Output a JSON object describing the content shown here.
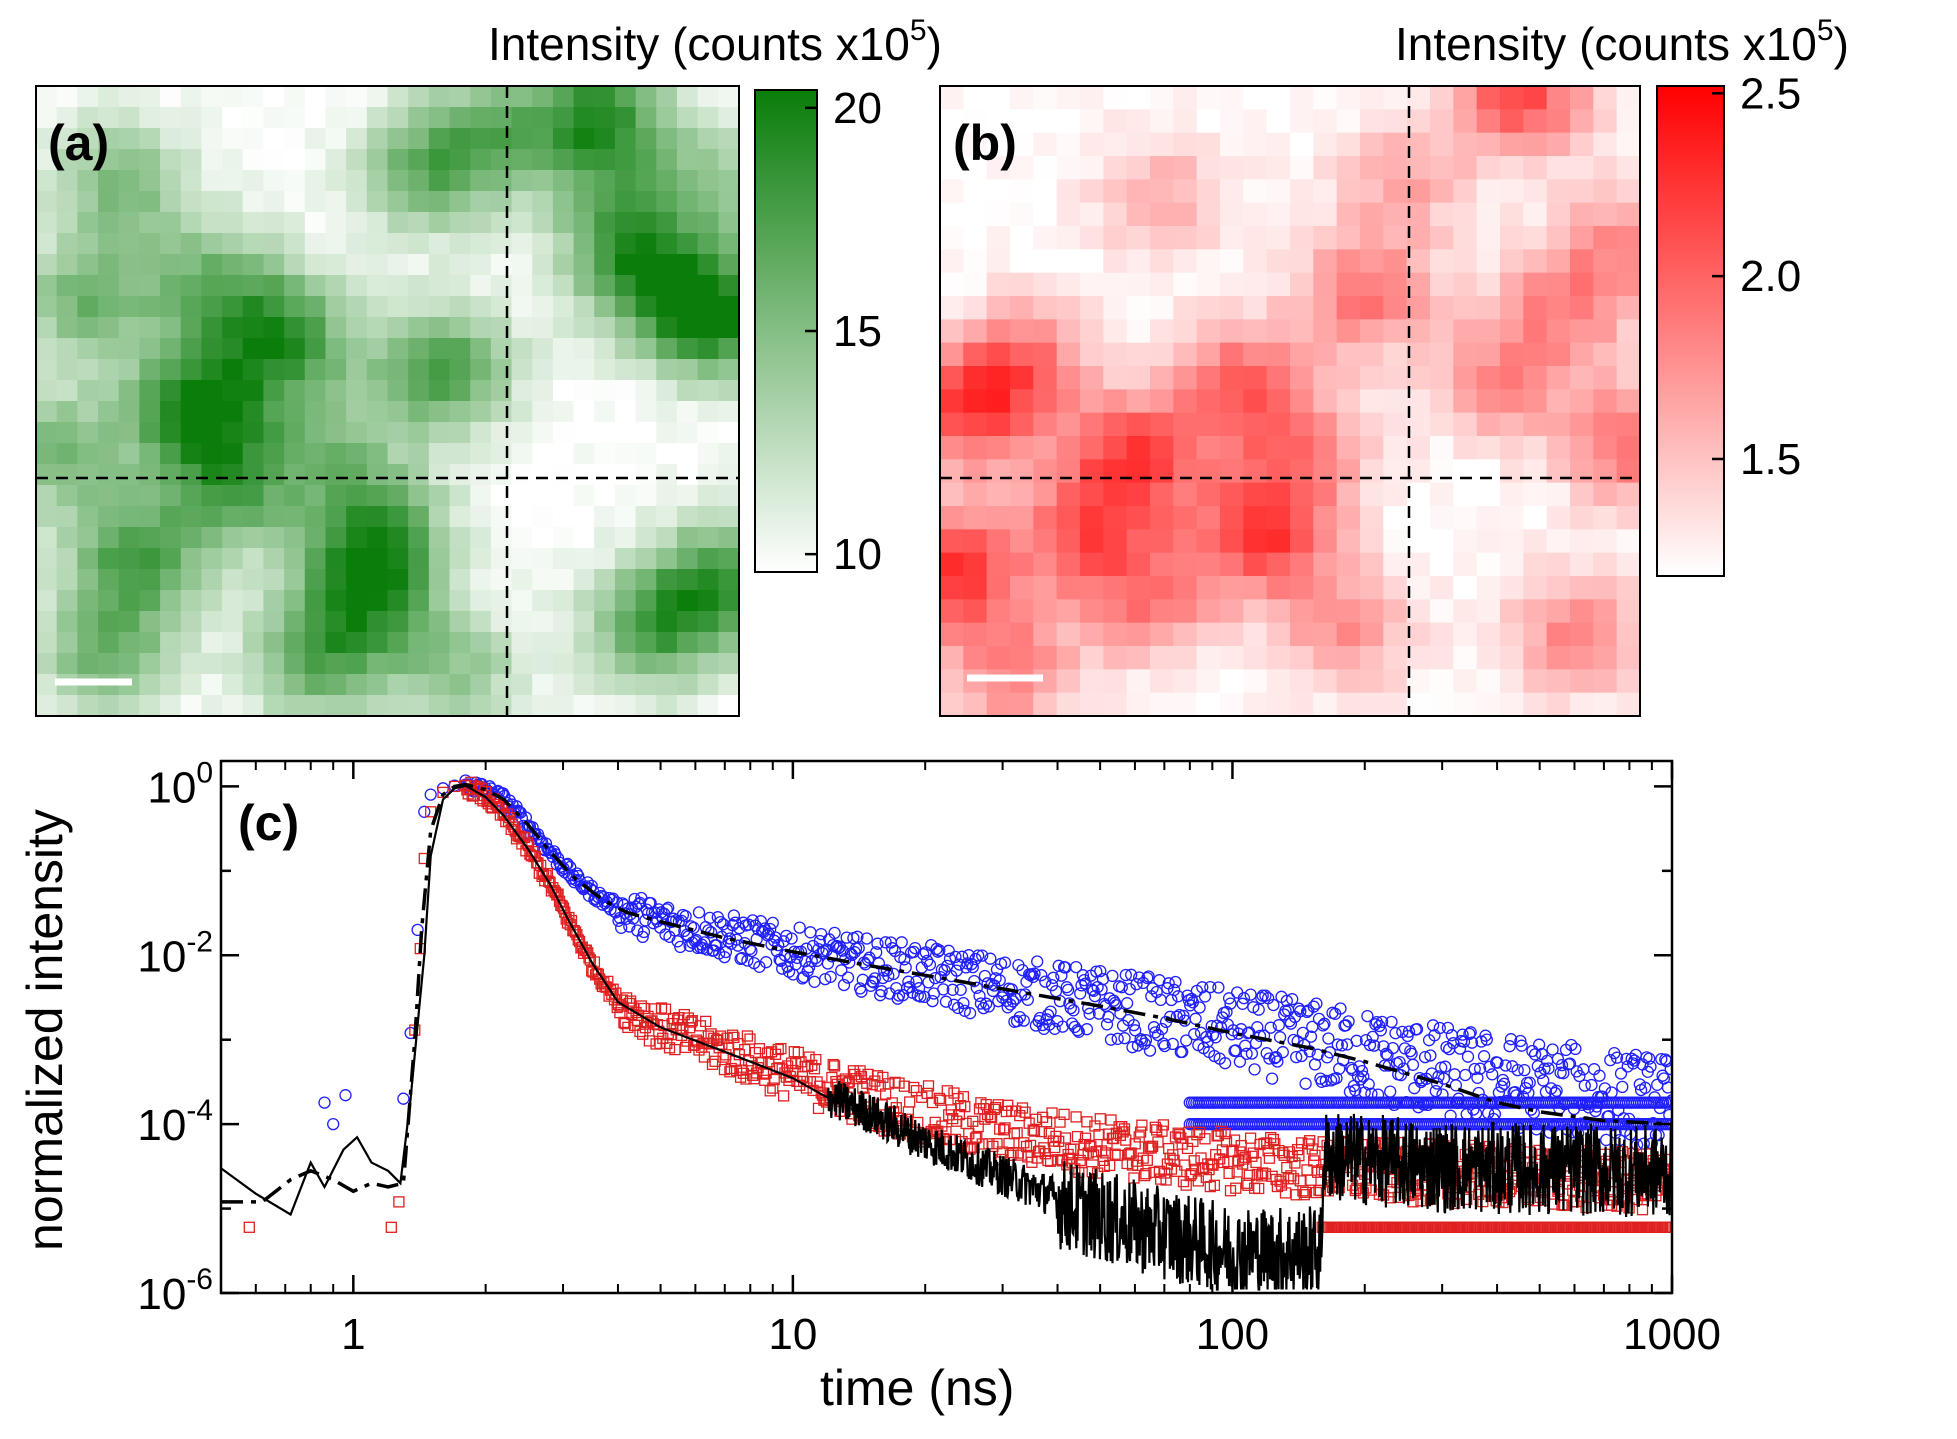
{
  "chart_data": [
    {
      "type": "heatmap",
      "panel_label": "(a)",
      "colorbar": {
        "title_prefix": "Intensity (counts x10",
        "title_exponent": "5",
        "title_suffix": ")",
        "ticks": [
          "20",
          "15",
          "10"
        ],
        "tick_values": [
          20,
          15,
          10
        ],
        "range": [
          9.6,
          20.4
        ],
        "color_low": "#ffffff",
        "color_high": "#0a7d0a"
      },
      "crosshair": {
        "x_fraction": 0.67,
        "y_fraction": 0.62
      },
      "grid_size": [
        34,
        30
      ],
      "hotspots": [
        {
          "x": 0.23,
          "y": 0.51,
          "a": 1.0
        },
        {
          "x": 0.35,
          "y": 0.4,
          "a": 0.85
        },
        {
          "x": 0.25,
          "y": 0.31,
          "a": 0.55
        },
        {
          "x": 0.58,
          "y": 0.45,
          "a": 0.8
        },
        {
          "x": 0.07,
          "y": 0.34,
          "a": 0.6
        },
        {
          "x": 0.8,
          "y": 0.05,
          "a": 0.9
        },
        {
          "x": 0.97,
          "y": 0.37,
          "a": 0.95
        },
        {
          "x": 0.87,
          "y": 0.3,
          "a": 0.8
        },
        {
          "x": 0.14,
          "y": 0.75,
          "a": 0.75
        },
        {
          "x": 0.28,
          "y": 0.64,
          "a": 0.65
        },
        {
          "x": 0.47,
          "y": 0.8,
          "a": 0.8
        },
        {
          "x": 0.49,
          "y": 0.7,
          "a": 0.65
        },
        {
          "x": 0.1,
          "y": 0.9,
          "a": 0.6
        },
        {
          "x": 0.4,
          "y": 0.91,
          "a": 0.65
        },
        {
          "x": 0.88,
          "y": 0.86,
          "a": 0.75
        },
        {
          "x": 0.98,
          "y": 0.78,
          "a": 0.75
        },
        {
          "x": 0.55,
          "y": 0.14,
          "a": 0.55
        },
        {
          "x": 0.64,
          "y": 0.08,
          "a": 0.55
        },
        {
          "x": 0.12,
          "y": 0.15,
          "a": 0.55
        },
        {
          "x": 0.82,
          "y": 0.2,
          "a": 0.45
        },
        {
          "x": 0.6,
          "y": 0.93,
          "a": 0.45
        },
        {
          "x": 0.03,
          "y": 0.58,
          "a": 0.55
        },
        {
          "x": 0.42,
          "y": 0.57,
          "a": 0.4
        },
        {
          "x": 0.97,
          "y": 0.15,
          "a": 0.4
        }
      ]
    },
    {
      "type": "heatmap",
      "panel_label": "(b)",
      "colorbar": {
        "title_prefix": "Intensity (counts x10",
        "title_exponent": "5",
        "title_suffix": ")",
        "ticks": [
          "2.5",
          "2.0",
          "1.5"
        ],
        "tick_values": [
          2.5,
          2.0,
          1.5
        ],
        "range": [
          1.18,
          2.52
        ],
        "color_low": "#ffffff",
        "color_high": "#ff0000"
      },
      "crosshair": {
        "x_fraction": 0.67,
        "y_fraction": 0.62
      },
      "grid_size": [
        30,
        27
      ],
      "hotspots": [
        {
          "x": 0.83,
          "y": 0.01,
          "a": 0.75
        },
        {
          "x": 0.04,
          "y": 0.52,
          "a": 0.7
        },
        {
          "x": 0.02,
          "y": 0.77,
          "a": 0.8
        },
        {
          "x": 0.28,
          "y": 0.59,
          "a": 0.75
        },
        {
          "x": 0.46,
          "y": 0.71,
          "a": 0.8
        },
        {
          "x": 0.21,
          "y": 0.71,
          "a": 0.6
        },
        {
          "x": 0.43,
          "y": 0.47,
          "a": 0.6
        },
        {
          "x": 0.61,
          "y": 0.33,
          "a": 0.55
        },
        {
          "x": 0.99,
          "y": 0.57,
          "a": 0.6
        },
        {
          "x": 0.91,
          "y": 0.87,
          "a": 0.5
        },
        {
          "x": 0.8,
          "y": 0.47,
          "a": 0.45
        },
        {
          "x": 0.89,
          "y": 0.35,
          "a": 0.45
        },
        {
          "x": 0.12,
          "y": 0.44,
          "a": 0.55
        },
        {
          "x": 0.3,
          "y": 0.82,
          "a": 0.5
        },
        {
          "x": 0.58,
          "y": 0.86,
          "a": 0.45
        },
        {
          "x": 0.66,
          "y": 0.15,
          "a": 0.35
        },
        {
          "x": 0.98,
          "y": 0.25,
          "a": 0.4
        },
        {
          "x": 0.1,
          "y": 0.93,
          "a": 0.5
        },
        {
          "x": 0.52,
          "y": 0.58,
          "a": 0.45
        },
        {
          "x": 0.32,
          "y": 0.18,
          "a": 0.35
        }
      ]
    },
    {
      "type": "scatter",
      "panel_label": "(c)",
      "xlabel": "time (ns)",
      "ylabel": "normalized intensity",
      "xscale": "log",
      "yscale": "log",
      "xlim": [
        0.5,
        1000
      ],
      "ylim": [
        1e-06,
        2
      ],
      "xticks": [
        {
          "value": 1,
          "label": "1"
        },
        {
          "value": 10,
          "label": "10"
        },
        {
          "value": 100,
          "label": "100"
        },
        {
          "value": 1000,
          "label": "1000"
        }
      ],
      "yticks": [
        {
          "value": 1,
          "base": "10",
          "exp": "0"
        },
        {
          "value": 0.01,
          "base": "10",
          "exp": "-2"
        },
        {
          "value": 0.0001,
          "base": "10",
          "exp": "-4"
        },
        {
          "value": 1e-06,
          "base": "10",
          "exp": "-6"
        }
      ],
      "series": [
        {
          "marker": "circle",
          "color": "#1f1fff",
          "rise": [
            [
              0.86,
              0.00018
            ],
            [
              0.9,
              0.0001
            ],
            [
              0.96,
              0.00022
            ],
            [
              1.3,
              0.0002
            ],
            [
              1.35,
              0.0012
            ],
            [
              1.4,
              0.02
            ],
            [
              1.45,
              0.5
            ],
            [
              1.5,
              0.8
            ],
            [
              1.6,
              0.95
            ],
            [
              1.7,
              1.02
            ],
            [
              1.8,
              1.05
            ]
          ],
          "decay": [
            [
              1.8,
              1.05
            ],
            [
              2.0,
              0.92
            ],
            [
              2.2,
              0.7
            ],
            [
              2.5,
              0.35
            ],
            [
              2.8,
              0.17
            ],
            [
              3.2,
              0.08
            ],
            [
              3.7,
              0.045
            ],
            [
              4.2,
              0.032
            ],
            [
              5,
              0.025
            ],
            [
              7,
              0.017
            ],
            [
              10,
              0.011
            ],
            [
              15,
              0.0075
            ],
            [
              20,
              0.006
            ],
            [
              30,
              0.004
            ],
            [
              50,
              0.0026
            ],
            [
              70,
              0.0019
            ],
            [
              100,
              0.0013
            ],
            [
              150,
              0.0009
            ],
            [
              200,
              0.00065
            ],
            [
              300,
              0.00042
            ],
            [
              500,
              0.00028
            ],
            [
              700,
              0.00022
            ],
            [
              1000,
              0.00018
            ]
          ],
          "floor_lines": [
            0.00018,
            0.0001
          ],
          "floor_start": 80
        },
        {
          "marker": "square",
          "color": "#e02020",
          "rise": [
            [
              0.58,
              6e-06
            ],
            [
              1.22,
              6e-06
            ],
            [
              1.27,
              1.2e-05
            ],
            [
              1.38,
              0.0013
            ],
            [
              1.42,
              0.012
            ],
            [
              1.45,
              0.14
            ],
            [
              1.5,
              0.5
            ],
            [
              1.6,
              0.85
            ],
            [
              1.7,
              1.0
            ],
            [
              1.8,
              1.02
            ]
          ],
          "decay": [
            [
              1.8,
              1.02
            ],
            [
              2.0,
              0.75
            ],
            [
              2.2,
              0.45
            ],
            [
              2.5,
              0.18
            ],
            [
              2.8,
              0.07
            ],
            [
              3.1,
              0.025
            ],
            [
              3.5,
              0.0075
            ],
            [
              4.0,
              0.0028
            ],
            [
              5.0,
              0.0014
            ],
            [
              7.0,
              0.00075
            ],
            [
              10,
              0.00038
            ],
            [
              15,
              0.0002
            ],
            [
              20,
              0.00013
            ],
            [
              30,
              8e-05
            ],
            [
              50,
              5.5e-05
            ],
            [
              80,
              4e-05
            ],
            [
              150,
              3e-05
            ],
            [
              300,
              2.6e-05
            ],
            [
              1000,
              2e-05
            ]
          ],
          "floor_lines": [
            6e-06
          ],
          "floor_start": 160
        },
        {
          "style": "solid",
          "color": "#000000",
          "points": [
            [
              0.5,
              3e-05
            ],
            [
              0.6,
              1.5e-05
            ],
            [
              0.72,
              8.5e-06
            ],
            [
              0.8,
              3.5e-05
            ],
            [
              0.86,
              1.8e-05
            ],
            [
              0.95,
              5e-05
            ],
            [
              1.02,
              7e-05
            ],
            [
              1.1,
              3.5e-05
            ],
            [
              1.2,
              2.8e-05
            ],
            [
              1.28,
              2e-05
            ],
            [
              1.35,
              0.0002
            ],
            [
              1.4,
              0.0015
            ],
            [
              1.45,
              0.01
            ],
            [
              1.5,
              0.15
            ],
            [
              1.6,
              0.7
            ],
            [
              1.7,
              0.95
            ],
            [
              1.8,
              1.02
            ],
            [
              2.0,
              0.75
            ],
            [
              2.2,
              0.45
            ],
            [
              2.5,
              0.18
            ],
            [
              2.8,
              0.07
            ],
            [
              3.1,
              0.025
            ],
            [
              3.5,
              0.008
            ],
            [
              4.0,
              0.0028
            ],
            [
              5.0,
              0.0014
            ],
            [
              7.0,
              0.00072
            ],
            [
              10,
              0.00035
            ],
            [
              15,
              0.00015
            ],
            [
              20,
              7e-05
            ],
            [
              30,
              2.8e-05
            ],
            [
              40,
              1.5e-05
            ],
            [
              60,
              8e-06
            ],
            [
              100,
              4e-06
            ],
            [
              160,
              4e-06
            ],
            [
              160.5,
              5.5e-05
            ],
            [
              300,
              4e-05
            ],
            [
              1000,
              3.5e-05
            ]
          ],
          "noise_start": 12
        },
        {
          "style": "dash-dot",
          "color": "#000000",
          "points": [
            [
              0.5,
              1.2e-05
            ],
            [
              0.62,
              1.2e-05
            ],
            [
              0.72,
              2.2e-05
            ],
            [
              0.8,
              2.8e-05
            ],
            [
              0.9,
              2.2e-05
            ],
            [
              1.0,
              1.6e-05
            ],
            [
              1.1,
              2e-05
            ],
            [
              1.2,
              1.8e-05
            ],
            [
              1.3,
              2e-05
            ],
            [
              1.38,
              0.001
            ],
            [
              1.43,
              0.02
            ],
            [
              1.5,
              0.3
            ],
            [
              1.6,
              0.8
            ],
            [
              1.7,
              1.0
            ],
            [
              1.8,
              1.05
            ],
            [
              2.0,
              0.92
            ],
            [
              2.2,
              0.7
            ],
            [
              2.5,
              0.35
            ],
            [
              2.8,
              0.17
            ],
            [
              3.2,
              0.08
            ],
            [
              3.7,
              0.045
            ],
            [
              4.2,
              0.032
            ],
            [
              5,
              0.025
            ],
            [
              7,
              0.016
            ],
            [
              10,
              0.011
            ],
            [
              15,
              0.0075
            ],
            [
              20,
              0.0058
            ],
            [
              30,
              0.004
            ],
            [
              50,
              0.0025
            ],
            [
              70,
              0.0018
            ],
            [
              100,
              0.0012
            ],
            [
              150,
              0.0008
            ],
            [
              200,
              0.00055
            ],
            [
              300,
              0.0003
            ],
            [
              400,
              0.00018
            ],
            [
              500,
              0.00014
            ],
            [
              700,
              0.00011
            ],
            [
              1000,
              0.0001
            ]
          ]
        }
      ]
    }
  ]
}
